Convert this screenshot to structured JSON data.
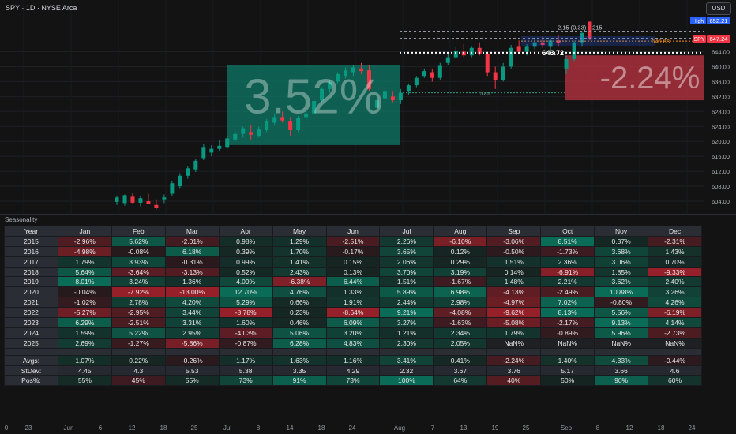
{
  "header": {
    "symbol_title": "SPY · 1D · NYSE Arca",
    "currency": "USD"
  },
  "chart_data": {
    "type": "candlestick",
    "symbol": "SPY",
    "price_axis": {
      "ticks": [
        644,
        640,
        636,
        632,
        628,
        624,
        620,
        616,
        612,
        608,
        604
      ],
      "range": [
        601.5,
        660.5
      ]
    },
    "price_labels": {
      "high_label": "High",
      "high_value": "652.21",
      "last_label": "SPY",
      "last_value": "647.24",
      "level_value": "646.83"
    },
    "candles": [
      {
        "o": 603.8,
        "h": 605.5,
        "l": 603.0,
        "c": 605.0
      },
      {
        "o": 603.5,
        "h": 605.8,
        "l": 602.8,
        "c": 605.6
      },
      {
        "o": 605.2,
        "h": 606.2,
        "l": 603.4,
        "c": 603.6
      },
      {
        "o": 603.6,
        "h": 605.4,
        "l": 602.6,
        "c": 604.8
      },
      {
        "o": 604.0,
        "h": 606.0,
        "l": 603.2,
        "c": 603.2
      },
      {
        "o": 603.0,
        "h": 604.5,
        "l": 601.8,
        "c": 602.2
      },
      {
        "o": 604.5,
        "h": 605.8,
        "l": 603.5,
        "c": 605.0
      },
      {
        "o": 606.0,
        "h": 609.5,
        "l": 605.5,
        "c": 608.8
      },
      {
        "o": 608.0,
        "h": 611.5,
        "l": 607.5,
        "c": 610.8
      },
      {
        "o": 610.8,
        "h": 613.5,
        "l": 610.0,
        "c": 612.8
      },
      {
        "o": 612.5,
        "h": 615.2,
        "l": 611.8,
        "c": 614.8
      },
      {
        "o": 615.5,
        "h": 619.2,
        "l": 615.0,
        "c": 618.5
      },
      {
        "o": 617.0,
        "h": 619.0,
        "l": 616.0,
        "c": 618.0
      },
      {
        "o": 618.0,
        "h": 620.5,
        "l": 617.5,
        "c": 618.8
      },
      {
        "o": 618.5,
        "h": 621.5,
        "l": 618.0,
        "c": 620.8
      },
      {
        "o": 620.5,
        "h": 622.8,
        "l": 619.8,
        "c": 622.0
      },
      {
        "o": 622.0,
        "h": 624.0,
        "l": 621.0,
        "c": 623.5
      },
      {
        "o": 622.5,
        "h": 624.5,
        "l": 620.5,
        "c": 621.8
      },
      {
        "o": 621.5,
        "h": 624.0,
        "l": 621.0,
        "c": 623.2
      },
      {
        "o": 623.0,
        "h": 626.0,
        "l": 622.5,
        "c": 625.5
      },
      {
        "o": 625.0,
        "h": 627.5,
        "l": 624.5,
        "c": 626.5
      },
      {
        "o": 626.5,
        "h": 628.0,
        "l": 625.0,
        "c": 625.6
      },
      {
        "o": 625.5,
        "h": 626.5,
        "l": 621.5,
        "c": 623.0
      },
      {
        "o": 623.0,
        "h": 626.8,
        "l": 622.5,
        "c": 626.2
      },
      {
        "o": 626.5,
        "h": 628.5,
        "l": 625.8,
        "c": 627.5
      },
      {
        "o": 627.5,
        "h": 631.5,
        "l": 627.0,
        "c": 630.8
      },
      {
        "o": 631.0,
        "h": 634.5,
        "l": 630.5,
        "c": 634.0
      },
      {
        "o": 634.0,
        "h": 636.5,
        "l": 633.0,
        "c": 635.8
      },
      {
        "o": 636.0,
        "h": 638.5,
        "l": 635.5,
        "c": 638.0
      },
      {
        "o": 637.5,
        "h": 639.8,
        "l": 636.8,
        "c": 639.0
      },
      {
        "o": 638.5,
        "h": 640.5,
        "l": 637.5,
        "c": 639.8
      },
      {
        "o": 639.5,
        "h": 641.0,
        "l": 638.0,
        "c": 638.8
      },
      {
        "o": 639.0,
        "h": 640.5,
        "l": 633.5,
        "c": 634.0
      },
      {
        "o": 629.0,
        "h": 632.0,
        "l": 628.0,
        "c": 631.0
      },
      {
        "o": 631.5,
        "h": 634.5,
        "l": 631.0,
        "c": 633.5
      },
      {
        "o": 632.0,
        "h": 633.5,
        "l": 630.5,
        "c": 631.0
      },
      {
        "o": 631.0,
        "h": 634.0,
        "l": 630.0,
        "c": 633.0
      },
      {
        "o": 633.5,
        "h": 635.5,
        "l": 632.5,
        "c": 635.0
      },
      {
        "o": 635.0,
        "h": 637.5,
        "l": 634.5,
        "c": 637.0
      },
      {
        "o": 637.5,
        "h": 639.5,
        "l": 637.0,
        "c": 638.8
      },
      {
        "o": 638.5,
        "h": 639.5,
        "l": 636.0,
        "c": 637.0
      },
      {
        "o": 637.0,
        "h": 641.0,
        "l": 636.5,
        "c": 640.2
      },
      {
        "o": 641.0,
        "h": 643.8,
        "l": 640.5,
        "c": 642.5
      },
      {
        "o": 642.5,
        "h": 645.2,
        "l": 642.0,
        "c": 644.3
      },
      {
        "o": 644.0,
        "h": 646.0,
        "l": 642.5,
        "c": 643.0
      },
      {
        "o": 643.0,
        "h": 645.5,
        "l": 642.5,
        "c": 645.0
      },
      {
        "o": 645.0,
        "h": 646.5,
        "l": 643.0,
        "c": 643.5
      },
      {
        "o": 643.5,
        "h": 644.0,
        "l": 637.5,
        "c": 638.5
      },
      {
        "o": 638.5,
        "h": 640.0,
        "l": 634.0,
        "c": 636.5
      },
      {
        "o": 636.5,
        "h": 641.0,
        "l": 636.0,
        "c": 640.0
      },
      {
        "o": 640.0,
        "h": 645.8,
        "l": 639.5,
        "c": 645.0
      },
      {
        "o": 645.5,
        "h": 647.0,
        "l": 643.5,
        "c": 644.0
      },
      {
        "o": 644.0,
        "h": 646.0,
        "l": 643.0,
        "c": 645.5
      },
      {
        "o": 645.5,
        "h": 647.5,
        "l": 644.5,
        "c": 646.5
      },
      {
        "o": 646.5,
        "h": 648.0,
        "l": 645.0,
        "c": 645.8
      },
      {
        "o": 645.5,
        "h": 647.5,
        "l": 644.0,
        "c": 647.0
      },
      {
        "o": 647.0,
        "h": 648.5,
        "l": 645.5,
        "c": 646.2
      },
      {
        "o": 639.5,
        "h": 643.0,
        "l": 638.0,
        "c": 642.0
      },
      {
        "o": 642.0,
        "h": 647.0,
        "l": 641.5,
        "c": 646.5
      },
      {
        "o": 646.5,
        "h": 649.5,
        "l": 645.5,
        "c": 649.0
      },
      {
        "o": 652.0,
        "h": 652.2,
        "l": 647.0,
        "c": 647.24
      }
    ],
    "annotations": {
      "gain_box_text": "3.52%",
      "loss_box_text": "-2.24%",
      "level_label": "643.72",
      "top_labels": [
        "2.15 (0.33)",
        "215"
      ],
      "small_range_label": "5.85"
    },
    "time_axis": {
      "ticks": [
        "0",
        "23",
        "Jun",
        "6",
        "12",
        "18",
        "25",
        "Jul",
        "8",
        "14",
        "18",
        "24",
        "Aug",
        "7",
        "13",
        "19",
        "25",
        "Sep",
        "8",
        "12",
        "18",
        "24"
      ]
    }
  },
  "seasonality": {
    "title": "Seasonality",
    "columns": [
      "Year",
      "Jan",
      "Feb",
      "Mar",
      "Apr",
      "May",
      "Jun",
      "Jul",
      "Aug",
      "Sep",
      "Oct",
      "Nov",
      "Dec"
    ],
    "rows": [
      {
        "year": "2015",
        "values": [
          "-2.96%",
          "5.62%",
          "-2.01%",
          "0.98%",
          "1.29%",
          "-2.51%",
          "2.26%",
          "-6.10%",
          "-3.06%",
          "8.51%",
          "0.37%",
          "-2.31%"
        ]
      },
      {
        "year": "2016",
        "values": [
          "-4.98%",
          "-0.08%",
          "6.18%",
          "0.39%",
          "1.70%",
          "-0.17%",
          "3.65%",
          "0.12%",
          "-0.50%",
          "-1.73%",
          "3.68%",
          "1.43%"
        ]
      },
      {
        "year": "2017",
        "values": [
          "1.79%",
          "3.93%",
          "-0.31%",
          "0.99%",
          "1.41%",
          "0.15%",
          "2.06%",
          "0.29%",
          "1.51%",
          "2.36%",
          "3.06%",
          "0.70%"
        ]
      },
      {
        "year": "2018",
        "values": [
          "5.64%",
          "-3.64%",
          "-3.13%",
          "0.52%",
          "2.43%",
          "0.13%",
          "3.70%",
          "3.19%",
          "0.14%",
          "-6.91%",
          "1.85%",
          "-9.33%"
        ]
      },
      {
        "year": "2019",
        "values": [
          "8.01%",
          "3.24%",
          "1.36%",
          "4.09%",
          "-6.38%",
          "6.44%",
          "1.51%",
          "-1.67%",
          "1.48%",
          "2.21%",
          "3.62%",
          "2.40%"
        ]
      },
      {
        "year": "2020",
        "values": [
          "-0.04%",
          "-7.92%",
          "-13.00%",
          "12.70%",
          "4.76%",
          "1.33%",
          "5.89%",
          "6.98%",
          "-4.13%",
          "-2.49%",
          "10.88%",
          "3.26%"
        ]
      },
      {
        "year": "2021",
        "values": [
          "-1.02%",
          "2.78%",
          "4.20%",
          "5.29%",
          "0.66%",
          "1.91%",
          "2.44%",
          "2.98%",
          "-4.97%",
          "7.02%",
          "-0.80%",
          "4.26%"
        ]
      },
      {
        "year": "2022",
        "values": [
          "-5.27%",
          "-2.95%",
          "3.44%",
          "-8.78%",
          "0.23%",
          "-8.64%",
          "9.21%",
          "-4.08%",
          "-9.62%",
          "8.13%",
          "5.56%",
          "-6.19%"
        ]
      },
      {
        "year": "2023",
        "values": [
          "6.29%",
          "-2.51%",
          "3.31%",
          "1.60%",
          "0.46%",
          "6.09%",
          "3.27%",
          "-1.63%",
          "-5.08%",
          "-2.17%",
          "9.13%",
          "4.14%"
        ]
      },
      {
        "year": "2024",
        "values": [
          "1.59%",
          "5.22%",
          "2.95%",
          "-4.03%",
          "5.06%",
          "3.20%",
          "1.21%",
          "2.34%",
          "1.79%",
          "-0.89%",
          "5.96%",
          "-2.73%"
        ]
      },
      {
        "year": "2025",
        "values": [
          "2.69%",
          "-1.27%",
          "-5.86%",
          "-0.87%",
          "6.28%",
          "4.83%",
          "2.30%",
          "2.05%",
          "NaN%",
          "NaN%",
          "NaN%",
          "NaN%"
        ]
      }
    ],
    "stats": [
      {
        "label": "Avgs:",
        "values": [
          "1.07%",
          "0.22%",
          "-0.26%",
          "1.17%",
          "1.63%",
          "1.16%",
          "3.41%",
          "0.41%",
          "-2.24%",
          "1.40%",
          "4.33%",
          "-0.44%"
        ]
      },
      {
        "label": "StDev:",
        "values": [
          "4.45",
          "4.3",
          "5.53",
          "5.38",
          "3.35",
          "4.29",
          "2.32",
          "3.67",
          "3.76",
          "5.17",
          "3.66",
          "4.6"
        ]
      },
      {
        "label": "Pos%:",
        "values": [
          "55%",
          "45%",
          "55%",
          "73%",
          "91%",
          "73%",
          "100%",
          "64%",
          "40%",
          "50%",
          "90%",
          "60%"
        ]
      }
    ]
  },
  "colors": {
    "background": "#131314",
    "up": "#089981",
    "down": "#f23645",
    "gain_box": "#0e7a66",
    "loss_box": "#b3323f",
    "high_label": "#2962ff",
    "orange_level": "#f7931a"
  }
}
